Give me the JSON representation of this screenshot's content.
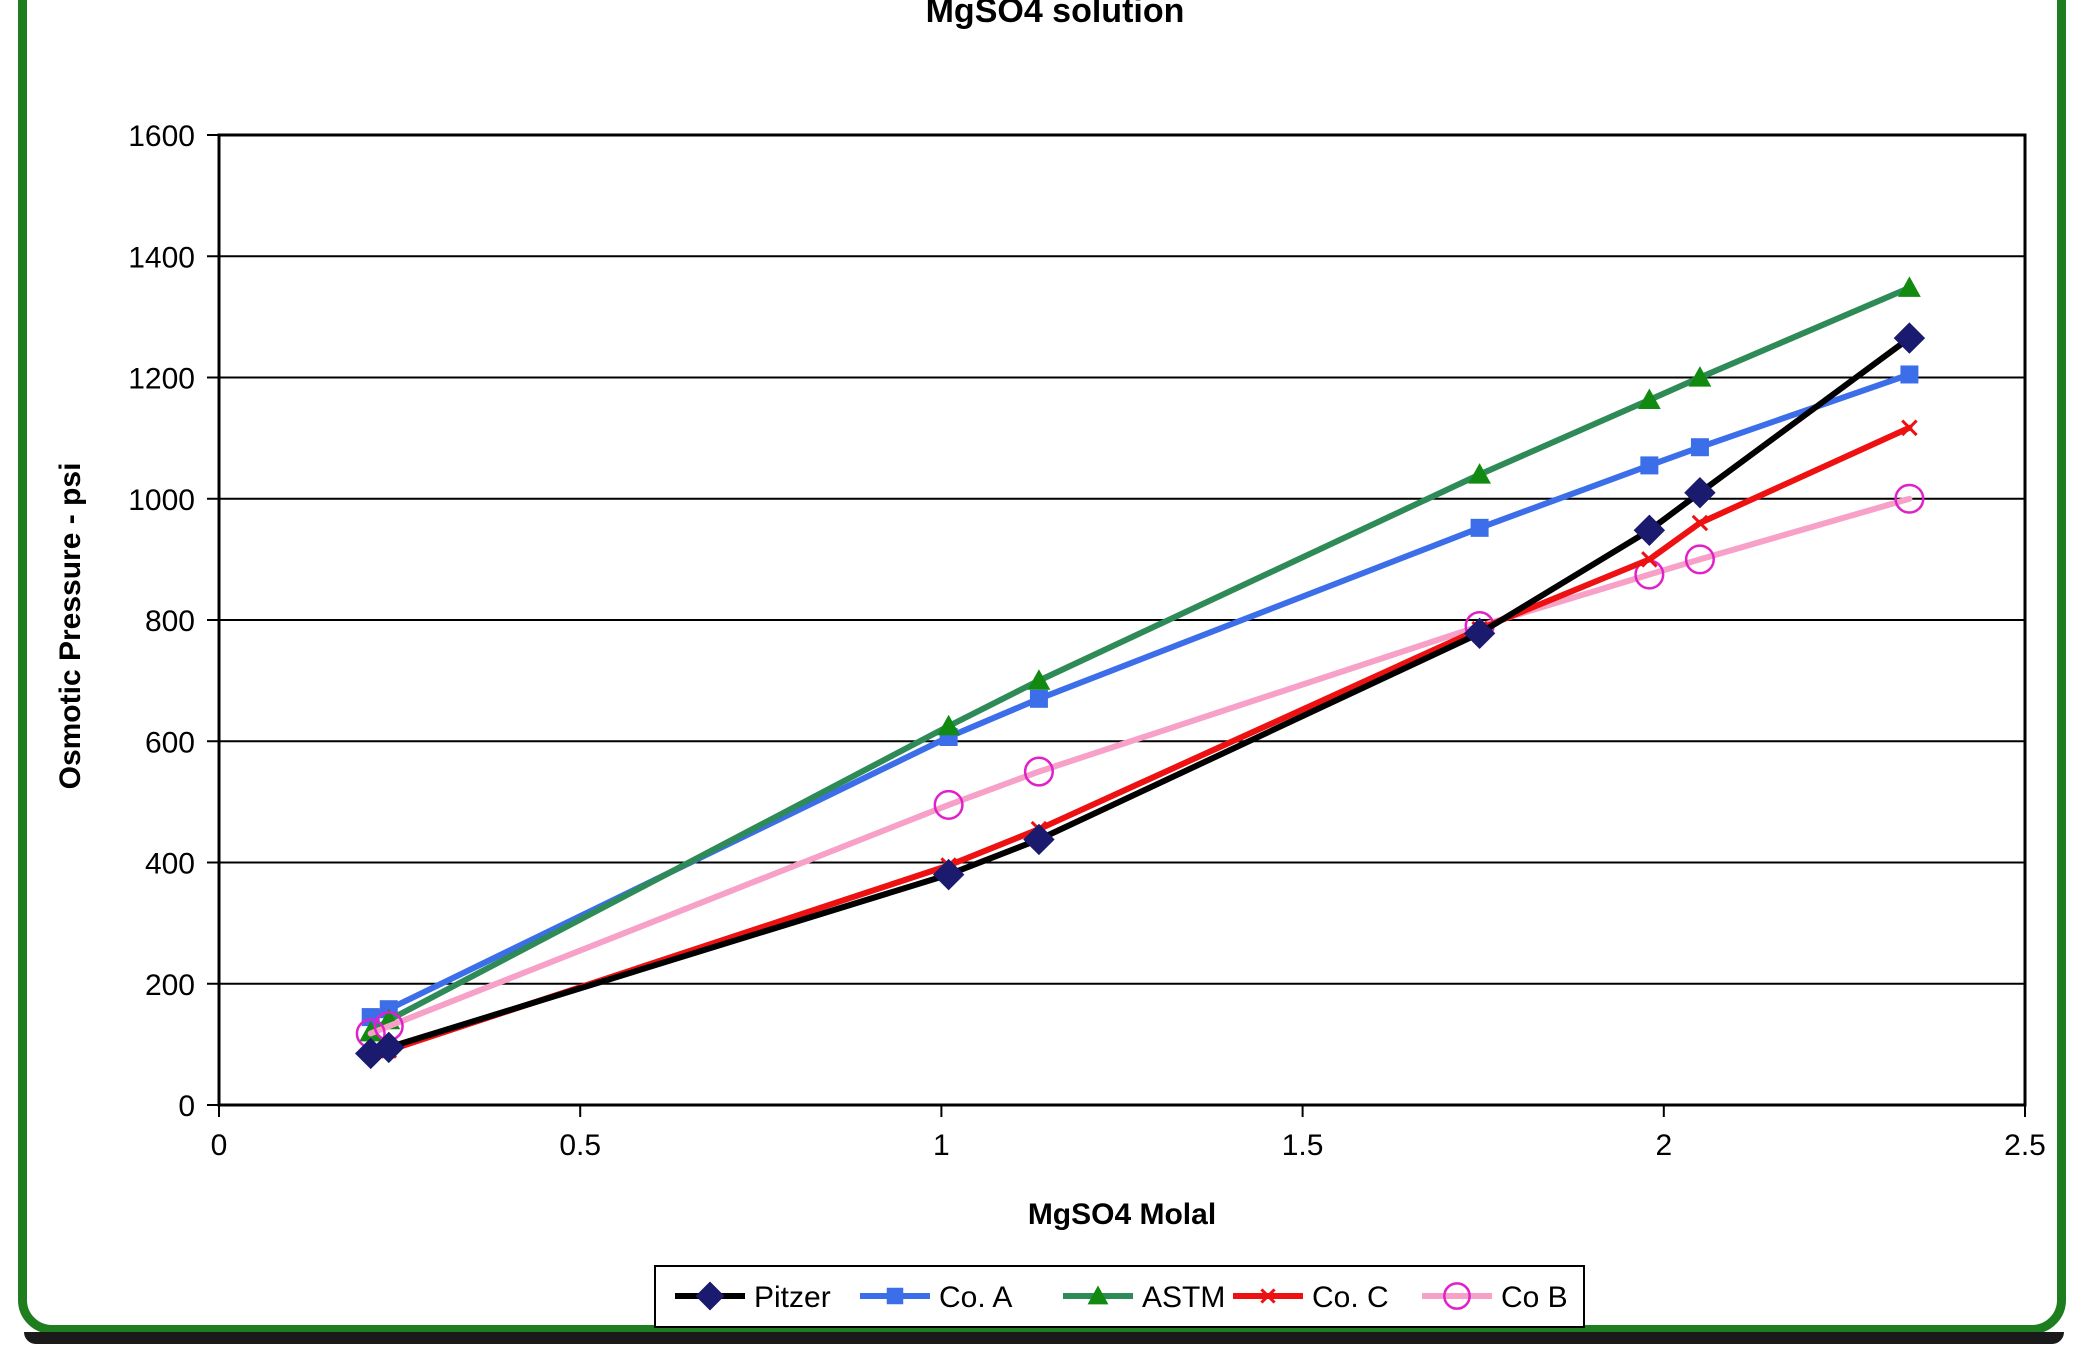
{
  "chart_data": {
    "type": "line",
    "title": "MgSO4 solution",
    "xlabel": "MgSO4  Molal",
    "ylabel": "Osmotic Pressure - psi",
    "xlim": [
      0,
      2.5
    ],
    "ylim": [
      0,
      1600
    ],
    "xticks": [
      "0",
      "0.5",
      "1",
      "1.5",
      "2",
      "2.5"
    ],
    "yticks": [
      "0",
      "200",
      "400",
      "600",
      "800",
      "1000",
      "1200",
      "1400",
      "1600"
    ],
    "grid": "horizontal",
    "legend_position": "bottom",
    "series": [
      {
        "name": "Pitzer",
        "color": "#000000",
        "marker": "diamond",
        "marker_color": "#1a1a6e",
        "x": [
          0.21,
          0.235,
          1.01,
          1.135,
          1.745,
          1.98,
          2.05,
          2.34
        ],
        "y": [
          85,
          95,
          380,
          438,
          778,
          948,
          1010,
          1265
        ]
      },
      {
        "name": "Co. A",
        "color": "#3b6ee8",
        "marker": "square",
        "marker_color": "#3b6ee8",
        "x": [
          0.21,
          0.235,
          1.01,
          1.135,
          1.745,
          1.98,
          2.05,
          2.34
        ],
        "y": [
          145,
          158,
          607,
          670,
          952,
          1055,
          1085,
          1205
        ]
      },
      {
        "name": "ASTM",
        "color": "#2e8b57",
        "marker": "triangle",
        "marker_color": "#128a12",
        "x": [
          0.21,
          0.235,
          1.01,
          1.135,
          1.745,
          1.98,
          2.05,
          2.34
        ],
        "y": [
          120,
          140,
          625,
          700,
          1040,
          1163,
          1200,
          1348
        ]
      },
      {
        "name": "Co. C",
        "color": "#ee1111",
        "marker": "x",
        "marker_color": "#ee1111",
        "x": [
          0.21,
          0.235,
          1.01,
          1.135,
          1.745,
          1.98,
          2.05,
          2.34
        ],
        "y": [
          85,
          90,
          395,
          455,
          785,
          900,
          960,
          1117
        ]
      },
      {
        "name": "Co B",
        "color": "#f7a0c8",
        "marker": "circle",
        "marker_color": "#e020c8",
        "x": [
          0.21,
          0.235,
          1.01,
          1.135,
          1.745,
          1.98,
          2.05,
          2.34
        ],
        "y": [
          118,
          130,
          495,
          550,
          790,
          875,
          900,
          1000
        ]
      }
    ]
  }
}
